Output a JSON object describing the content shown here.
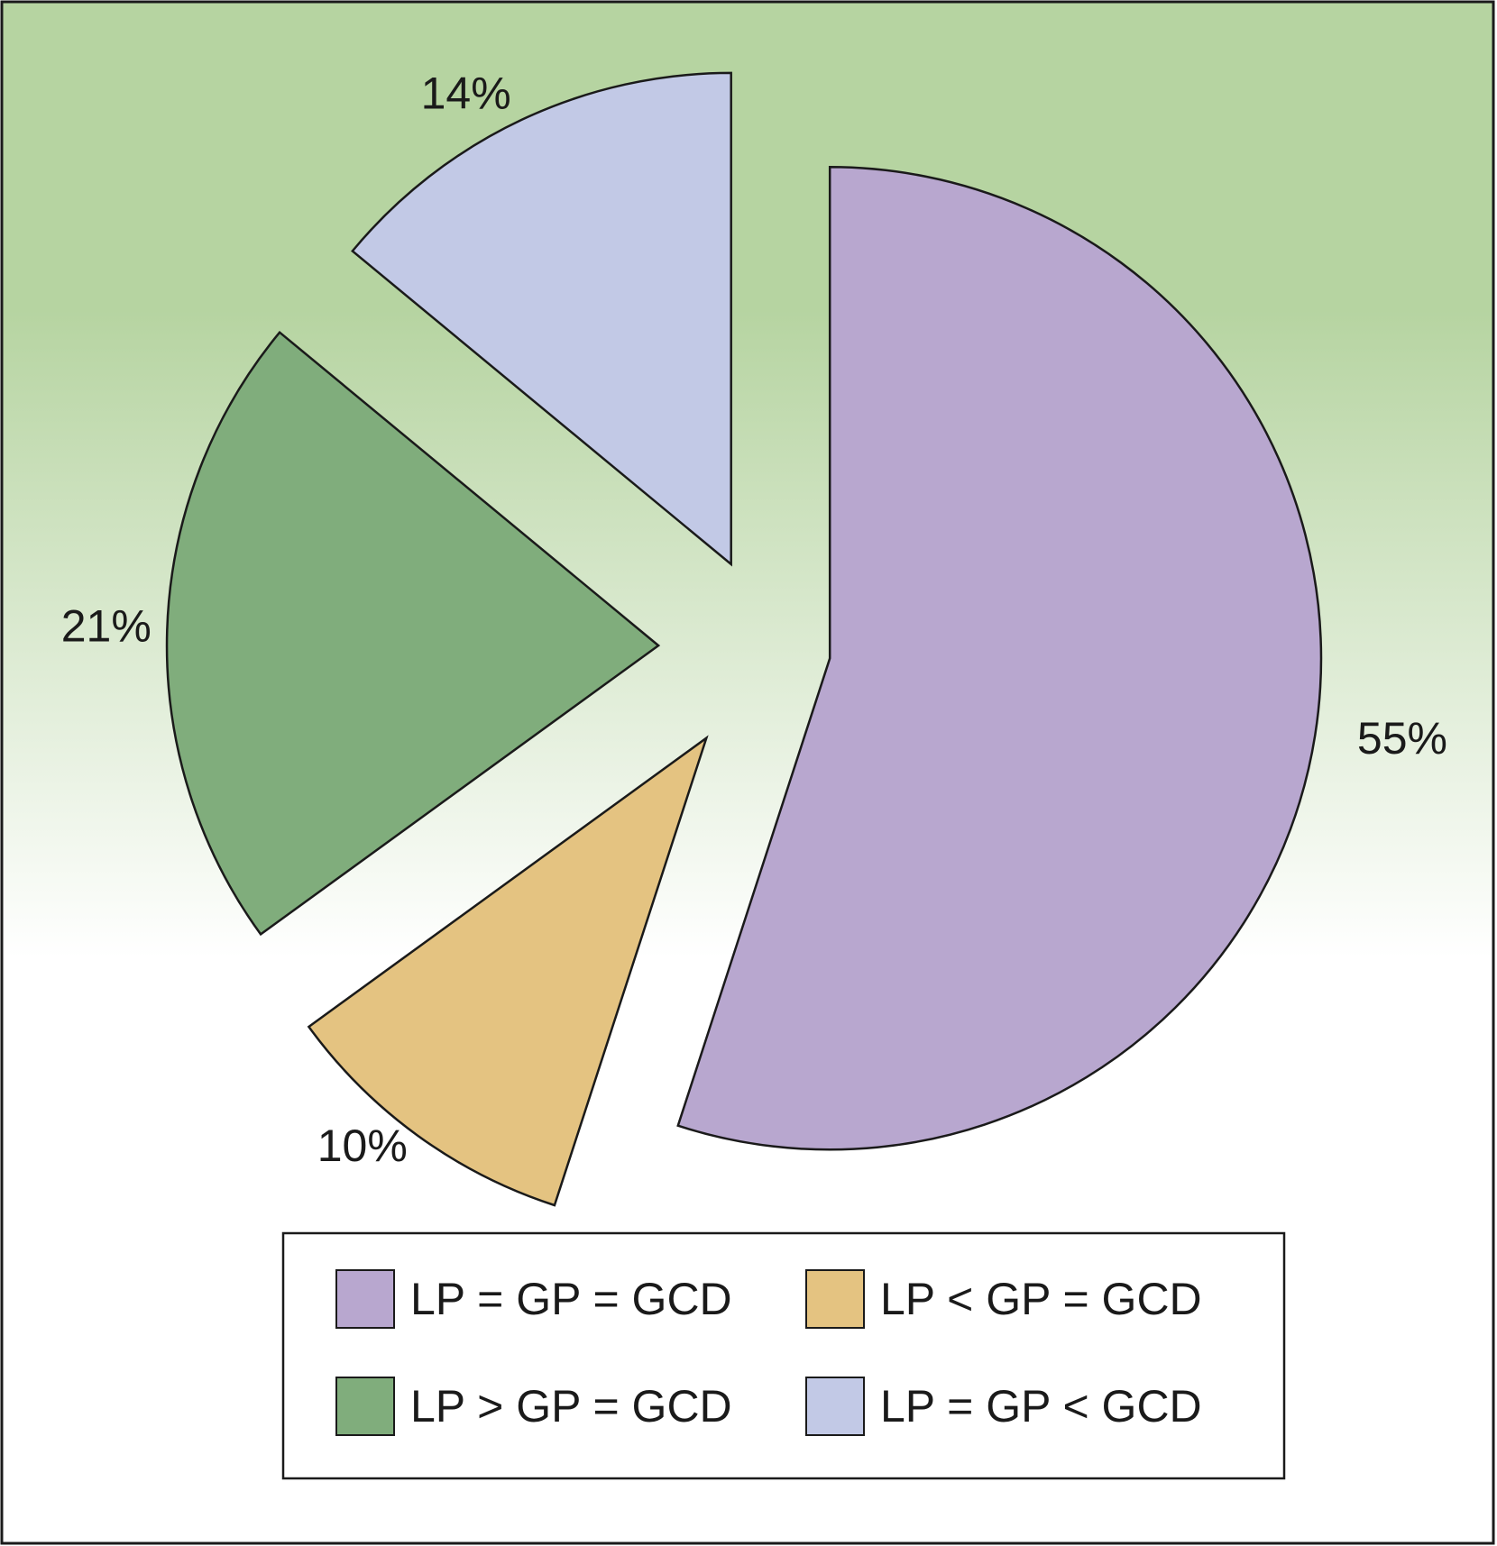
{
  "chart_data": {
    "type": "pie",
    "title": "",
    "slices": [
      {
        "label": "LP = GP = GCD",
        "value": 55,
        "value_label": "55%",
        "color": "#b8a7cf"
      },
      {
        "label": "LP < GP = GCD",
        "value": 10,
        "value_label": "10%",
        "color": "#e4c381"
      },
      {
        "label": "LP > GP = GCD",
        "value": 21,
        "value_label": "21%",
        "color": "#80ad7c"
      },
      {
        "label": "LP = GP < GCD",
        "value": 14,
        "value_label": "14%",
        "color": "#c2c9e6"
      }
    ],
    "exploded": true,
    "legend_placement": "bottom",
    "background_gradient": [
      "#b6d4a1",
      "#ffffff"
    ]
  }
}
